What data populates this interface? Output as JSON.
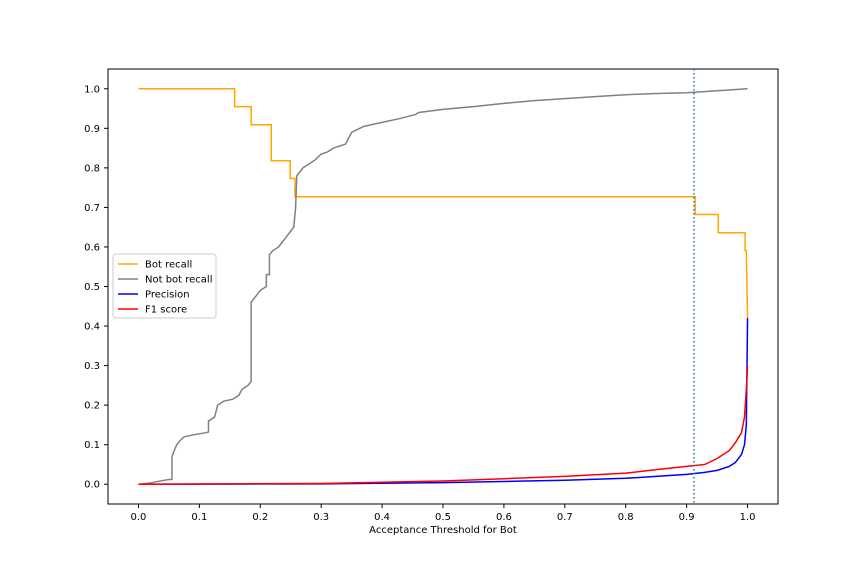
{
  "chart_data": {
    "type": "line",
    "title": "",
    "xlabel": "Acceptance Threshold for Bot",
    "ylabel": "",
    "xlim": [
      -0.05,
      1.05
    ],
    "ylim": [
      -0.05,
      1.05
    ],
    "xticks": [
      0.0,
      0.1,
      0.2,
      0.3,
      0.4,
      0.5,
      0.6,
      0.7,
      0.8,
      0.9,
      1.0
    ],
    "xtick_labels": [
      "0.0",
      "0.1",
      "0.2",
      "0.3",
      "0.4",
      "0.5",
      "0.6",
      "0.7",
      "0.8",
      "0.9",
      "1.0"
    ],
    "yticks": [
      0.0,
      0.1,
      0.2,
      0.3,
      0.4,
      0.5,
      0.6,
      0.7,
      0.8,
      0.9,
      1.0
    ],
    "ytick_labels": [
      "0.0",
      "0.1",
      "0.2",
      "0.3",
      "0.4",
      "0.5",
      "0.6",
      "0.7",
      "0.8",
      "0.9",
      "1.0"
    ],
    "grid": false,
    "legend_position": "center-left",
    "vline": {
      "x": 0.912,
      "color": "#1f77b4",
      "style": "dotted"
    },
    "series": [
      {
        "name": "Bot recall",
        "color": "#ffa500",
        "points": [
          [
            0,
            1.0
          ],
          [
            0.158,
            1.0
          ],
          [
            0.158,
            0.955
          ],
          [
            0.185,
            0.955
          ],
          [
            0.185,
            0.909
          ],
          [
            0.218,
            0.909
          ],
          [
            0.218,
            0.818
          ],
          [
            0.249,
            0.818
          ],
          [
            0.249,
            0.773
          ],
          [
            0.257,
            0.773
          ],
          [
            0.257,
            0.727
          ],
          [
            0.914,
            0.727
          ],
          [
            0.914,
            0.682
          ],
          [
            0.952,
            0.682
          ],
          [
            0.952,
            0.636
          ],
          [
            0.996,
            0.636
          ],
          [
            0.996,
            0.591
          ],
          [
            0.998,
            0.591
          ],
          [
            1.0,
            0.42
          ]
        ]
      },
      {
        "name": "Not bot recall",
        "color": "#808080",
        "points": [
          [
            0,
            0.0
          ],
          [
            0.02,
            0.003
          ],
          [
            0.035,
            0.008
          ],
          [
            0.05,
            0.012
          ],
          [
            0.055,
            0.012
          ],
          [
            0.055,
            0.07
          ],
          [
            0.06,
            0.09
          ],
          [
            0.063,
            0.1
          ],
          [
            0.068,
            0.11
          ],
          [
            0.075,
            0.12
          ],
          [
            0.09,
            0.125
          ],
          [
            0.11,
            0.13
          ],
          [
            0.115,
            0.132
          ],
          [
            0.115,
            0.16
          ],
          [
            0.125,
            0.17
          ],
          [
            0.13,
            0.2
          ],
          [
            0.14,
            0.21
          ],
          [
            0.155,
            0.215
          ],
          [
            0.165,
            0.225
          ],
          [
            0.17,
            0.24
          ],
          [
            0.18,
            0.25
          ],
          [
            0.185,
            0.26
          ],
          [
            0.185,
            0.46
          ],
          [
            0.19,
            0.47
          ],
          [
            0.195,
            0.48
          ],
          [
            0.2,
            0.49
          ],
          [
            0.21,
            0.5
          ],
          [
            0.21,
            0.53
          ],
          [
            0.215,
            0.53
          ],
          [
            0.215,
            0.58
          ],
          [
            0.22,
            0.59
          ],
          [
            0.23,
            0.6
          ],
          [
            0.235,
            0.61
          ],
          [
            0.24,
            0.62
          ],
          [
            0.245,
            0.63
          ],
          [
            0.25,
            0.64
          ],
          [
            0.255,
            0.65
          ],
          [
            0.258,
            0.7
          ],
          [
            0.26,
            0.78
          ],
          [
            0.27,
            0.8
          ],
          [
            0.28,
            0.81
          ],
          [
            0.29,
            0.82
          ],
          [
            0.3,
            0.835
          ],
          [
            0.31,
            0.84
          ],
          [
            0.32,
            0.85
          ],
          [
            0.34,
            0.86
          ],
          [
            0.35,
            0.89
          ],
          [
            0.37,
            0.905
          ],
          [
            0.4,
            0.915
          ],
          [
            0.43,
            0.925
          ],
          [
            0.455,
            0.935
          ],
          [
            0.46,
            0.94
          ],
          [
            0.5,
            0.948
          ],
          [
            0.55,
            0.955
          ],
          [
            0.6,
            0.963
          ],
          [
            0.65,
            0.97
          ],
          [
            0.7,
            0.975
          ],
          [
            0.75,
            0.98
          ],
          [
            0.8,
            0.985
          ],
          [
            0.85,
            0.988
          ],
          [
            0.9,
            0.99
          ],
          [
            0.95,
            0.995
          ],
          [
            1.0,
            1.0
          ]
        ]
      },
      {
        "name": "Precision",
        "color": "#0000ff",
        "points": [
          [
            0,
            0.0
          ],
          [
            0.3,
            0.001
          ],
          [
            0.5,
            0.004
          ],
          [
            0.6,
            0.007
          ],
          [
            0.7,
            0.01
          ],
          [
            0.8,
            0.015
          ],
          [
            0.85,
            0.02
          ],
          [
            0.9,
            0.025
          ],
          [
            0.93,
            0.03
          ],
          [
            0.95,
            0.035
          ],
          [
            0.97,
            0.045
          ],
          [
            0.98,
            0.055
          ],
          [
            0.99,
            0.075
          ],
          [
            0.995,
            0.1
          ],
          [
            0.998,
            0.15
          ],
          [
            1.0,
            0.42
          ]
        ]
      },
      {
        "name": "F1 score",
        "color": "#ff0000",
        "points": [
          [
            0,
            0.0
          ],
          [
            0.3,
            0.002
          ],
          [
            0.5,
            0.008
          ],
          [
            0.6,
            0.014
          ],
          [
            0.7,
            0.02
          ],
          [
            0.8,
            0.028
          ],
          [
            0.85,
            0.037
          ],
          [
            0.9,
            0.045
          ],
          [
            0.93,
            0.05
          ],
          [
            0.95,
            0.065
          ],
          [
            0.97,
            0.085
          ],
          [
            0.98,
            0.105
          ],
          [
            0.99,
            0.13
          ],
          [
            0.995,
            0.17
          ],
          [
            0.998,
            0.24
          ],
          [
            1.0,
            0.3
          ]
        ]
      }
    ]
  }
}
